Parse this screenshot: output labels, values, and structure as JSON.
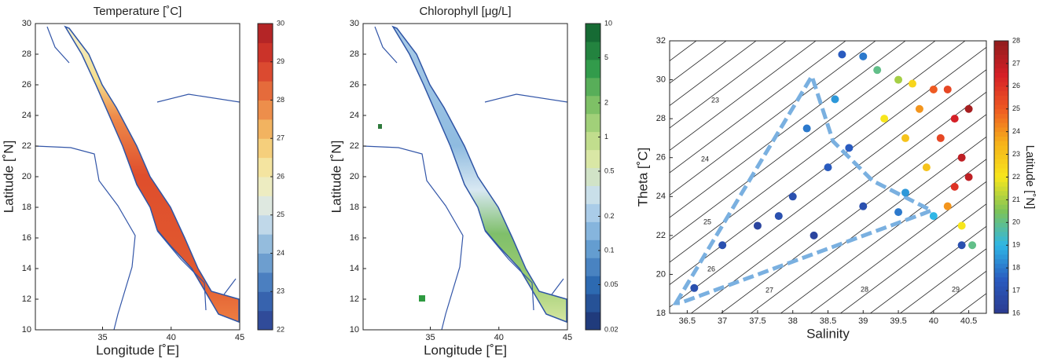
{
  "chart_data": [
    {
      "type": "map",
      "title": "Temperature [˚C]",
      "xlabel": "Longitude [˚E]",
      "ylabel": "Latitude [˚N]",
      "xlim": [
        30.1,
        45
      ],
      "ylim": [
        10,
        30
      ],
      "xticks": [
        35,
        40,
        45
      ],
      "yticks": [
        10,
        12,
        14,
        16,
        18,
        20,
        22,
        24,
        26,
        28,
        30
      ],
      "colorbar": {
        "lim": [
          22,
          30
        ],
        "ticks": [
          22,
          23,
          24,
          25,
          26,
          27,
          28,
          29,
          30
        ],
        "log": false,
        "colors": [
          "#2c3f8f",
          "#3a6fb8",
          "#7eaed7",
          "#d6e6ef",
          "#f4eeb2",
          "#f5c56a",
          "#ea7b40",
          "#d63a2a",
          "#a91e25"
        ]
      }
    },
    {
      "type": "map",
      "title": "Chlorophyll [μg/L]",
      "xlabel": "Longitude [˚E]",
      "ylabel": "Latitude [˚N]",
      "xlim": [
        30.1,
        45
      ],
      "ylim": [
        10,
        30
      ],
      "xticks": [
        35,
        40,
        45
      ],
      "yticks": [
        10,
        12,
        14,
        16,
        18,
        20,
        22,
        24,
        26,
        28,
        30
      ],
      "colorbar": {
        "lim": [
          0.02,
          10
        ],
        "ticks": [
          0.02,
          0.05,
          0.1,
          0.2,
          0.5,
          1,
          2,
          5,
          10
        ],
        "log": true,
        "colors": [
          "#1d2f6f",
          "#2b68b0",
          "#6ea6d6",
          "#c7def0",
          "#dbe89e",
          "#8cc76b",
          "#2f9a4a",
          "#0f5f2e"
        ]
      }
    },
    {
      "type": "scatter",
      "xlabel": "Salinity",
      "ylabel": "Theta [˚C]",
      "xlim": [
        36.25,
        40.75
      ],
      "ylim": [
        18,
        32
      ],
      "xticks": [
        36.5,
        37,
        37.5,
        38,
        38.5,
        39,
        39.5,
        40,
        40.5
      ],
      "yticks": [
        18,
        20,
        22,
        24,
        26,
        28,
        30,
        32
      ],
      "contour_labels": [
        23,
        24,
        25,
        26,
        27,
        28,
        29
      ],
      "series": [
        {
          "x": [
            36.6,
            37.0,
            37.5,
            38.0,
            38.5,
            38.2,
            37.8,
            39.0,
            39.5,
            38.6,
            38.7,
            39.0,
            38.8,
            38.3,
            39.6,
            40.0,
            40.4,
            39.2,
            39.5,
            39.3,
            39.6,
            39.8,
            40.0,
            40.1,
            40.3,
            40.4,
            40.5,
            40.5,
            40.3,
            40.2,
            40.4,
            40.55,
            39.9,
            39.7,
            40.2
          ],
          "values": [
            19.3,
            21.5,
            22.5,
            24,
            25.5,
            27.5,
            23,
            23.5,
            23.2,
            29,
            31.3,
            31.2,
            26.5,
            22,
            24.2,
            23,
            21.5,
            30.5,
            30,
            28,
            27,
            28.5,
            29.5,
            27,
            28,
            26,
            28.5,
            25,
            24.5,
            23.5,
            22.5,
            21.5,
            25.5,
            29.8,
            29.5
          ],
          "latitude": [
            17,
            17,
            16.5,
            17,
            17.5,
            18,
            17,
            17,
            18,
            18.5,
            17.5,
            18,
            17.5,
            16.5,
            18.5,
            19,
            17,
            20,
            21,
            22,
            23,
            24,
            25,
            25.5,
            26.5,
            27,
            27.5,
            27,
            26,
            24,
            22,
            20,
            23,
            22.5,
            25.5
          ]
        }
      ],
      "colorbar": {
        "label": "Latitude [˚N]",
        "lim": [
          16,
          28
        ],
        "ticks": [
          16,
          17,
          18,
          19,
          20,
          21,
          22,
          23,
          24,
          25,
          26,
          27,
          28
        ],
        "log": false,
        "colors": [
          "#2b3a8f",
          "#2a5bbf",
          "#2fb6e6",
          "#7cc35a",
          "#f7e61c",
          "#f6b21b",
          "#ee5a22",
          "#d52027",
          "#8f1d1d"
        ]
      }
    }
  ]
}
